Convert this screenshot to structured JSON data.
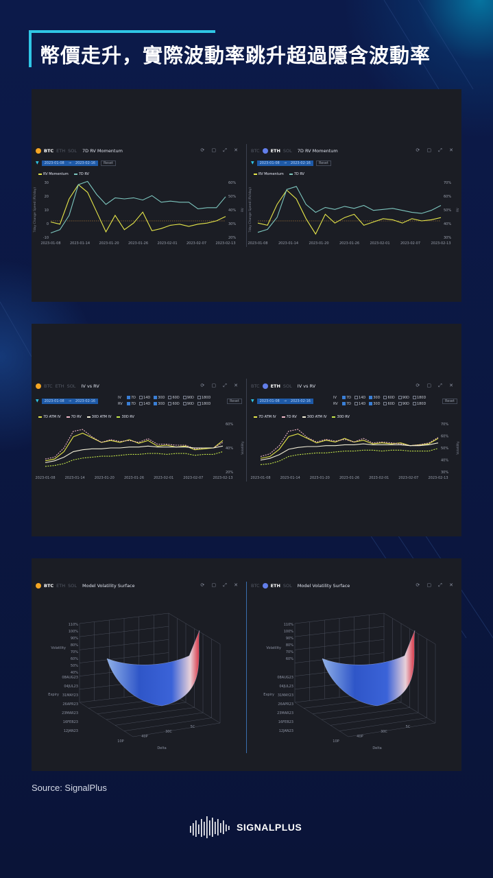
{
  "page_title": "幣價走升，實際波動率跳升超過隱含波動率",
  "source": "Source: SignalPlus",
  "logo_text": "SIGNALPLUS",
  "colors": {
    "background": "#0b1640",
    "accent": "#2fc6e6",
    "panel": "#1b1d24",
    "yellow": "#e8e84a",
    "teal": "#7ec8c0",
    "pink": "#f2b8c8",
    "btc": "#f5a623",
    "eth": "#627eea"
  },
  "tabs": {
    "btc": "BTC",
    "eth": "ETH",
    "sol": "SOL"
  },
  "reset_label": "Reset",
  "date_range": {
    "start": "2023-01-08",
    "end": "2023-02-16"
  },
  "x_ticks": [
    "2023-01-08",
    "2023-01-14",
    "2023-01-20",
    "2023-01-26",
    "2023-02-01",
    "2023-02-07",
    "2023-02-13"
  ],
  "iv_filters": {
    "iv_label": "IV",
    "rv_label": "RV",
    "tenors": [
      "7D",
      "14D",
      "30D",
      "60D",
      "90D",
      "180D"
    ],
    "iv_checked": [
      true,
      false,
      true,
      false,
      false,
      false
    ],
    "rv_checked": [
      true,
      false,
      true,
      false,
      false,
      false
    ]
  },
  "chart_data": [
    {
      "id": "btc-rv-momentum",
      "type": "line",
      "coin": "BTC",
      "title": "7D RV Momentum",
      "x": [
        "2023-01-08",
        "2023-01-10",
        "2023-01-12",
        "2023-01-14",
        "2023-01-16",
        "2023-01-18",
        "2023-01-20",
        "2023-01-22",
        "2023-01-24",
        "2023-01-26",
        "2023-01-28",
        "2023-01-30",
        "2023-02-01",
        "2023-02-03",
        "2023-02-05",
        "2023-02-07",
        "2023-02-09",
        "2023-02-11",
        "2023-02-13",
        "2023-02-16"
      ],
      "ylabel_left": "7day Change Speed (RV/day)",
      "ylabel_right": "RV",
      "yticks_left": [
        "30",
        "20",
        "10",
        "0",
        "-10"
      ],
      "yticks_right": [
        "60%",
        "50%",
        "40%",
        "30%",
        "20%"
      ],
      "ylim_left": [
        -15,
        35
      ],
      "ylim_right": [
        15,
        65
      ],
      "series": [
        {
          "name": "RV Momentum",
          "color": "#e8e84a",
          "axis": "left",
          "values": [
            -1,
            -3,
            20,
            33,
            26,
            8,
            -10,
            5,
            -8,
            -2,
            8,
            -9,
            -7,
            -4,
            -3,
            -5,
            -3,
            -2,
            0,
            4
          ]
        },
        {
          "name": "7D RV",
          "color": "#7ec8c0",
          "axis": "right",
          "values": [
            19,
            22,
            35,
            63,
            66,
            54,
            45,
            51,
            50,
            51,
            49,
            53,
            47,
            48,
            47,
            47,
            41,
            42,
            42,
            52
          ]
        }
      ]
    },
    {
      "id": "eth-rv-momentum",
      "type": "line",
      "coin": "ETH",
      "title": "7D RV Momentum",
      "x": [
        "2023-01-08",
        "2023-01-10",
        "2023-01-12",
        "2023-01-14",
        "2023-01-16",
        "2023-01-18",
        "2023-01-20",
        "2023-01-22",
        "2023-01-24",
        "2023-01-26",
        "2023-01-28",
        "2023-01-30",
        "2023-02-01",
        "2023-02-03",
        "2023-02-05",
        "2023-02-07",
        "2023-02-09",
        "2023-02-11",
        "2023-02-13",
        "2023-02-16"
      ],
      "ylabel_left": "7day Change Speed (RV/day)",
      "ylabel_right": "RV",
      "yticks_right": [
        "70%",
        "60%",
        "50%",
        "40%",
        "30%"
      ],
      "ylim_left": [
        -15,
        35
      ],
      "ylim_right": [
        25,
        80
      ],
      "series": [
        {
          "name": "RV Momentum",
          "color": "#e8e84a",
          "axis": "left",
          "values": [
            -2,
            -4,
            15,
            28,
            20,
            2,
            -12,
            6,
            -2,
            3,
            6,
            -4,
            -1,
            2,
            1,
            -2,
            2,
            0,
            1,
            3
          ]
        },
        {
          "name": "7D RV",
          "color": "#7ec8c0",
          "axis": "right",
          "values": [
            30,
            33,
            45,
            73,
            76,
            58,
            50,
            55,
            53,
            56,
            54,
            57,
            52,
            53,
            54,
            52,
            50,
            49,
            52,
            57
          ]
        }
      ]
    },
    {
      "id": "btc-iv-vs-rv",
      "type": "line",
      "coin": "BTC",
      "title": "IV vs RV",
      "x": [
        "2023-01-08",
        "2023-01-10",
        "2023-01-12",
        "2023-01-14",
        "2023-01-16",
        "2023-01-18",
        "2023-01-20",
        "2023-01-22",
        "2023-01-24",
        "2023-01-26",
        "2023-01-28",
        "2023-01-30",
        "2023-02-01",
        "2023-02-03",
        "2023-02-05",
        "2023-02-07",
        "2023-02-09",
        "2023-02-11",
        "2023-02-13",
        "2023-02-16"
      ],
      "ylabel_right": "Volatility",
      "yticks_right": [
        "60%",
        "40%",
        "20%"
      ],
      "ylim_right": [
        18,
        70
      ],
      "series": [
        {
          "name": "7D ATM IV",
          "color": "#e8e84a",
          "values": [
            30,
            32,
            40,
            56,
            60,
            55,
            50,
            52,
            50,
            53,
            49,
            52,
            46,
            47,
            45,
            46,
            42,
            43,
            44,
            52
          ]
        },
        {
          "name": "7D RV",
          "color": "#f2b8c8",
          "values": [
            32,
            34,
            44,
            62,
            64,
            56,
            50,
            53,
            51,
            52,
            50,
            54,
            48,
            48,
            47,
            47,
            43,
            44,
            44,
            50
          ]
        },
        {
          "name": "30D ATM IV",
          "color": "#f4f0d8",
          "values": [
            28,
            30,
            34,
            40,
            42,
            43,
            43,
            44,
            44,
            45,
            45,
            46,
            45,
            45,
            45,
            45,
            44,
            44,
            44,
            46
          ]
        },
        {
          "name": "30D RV",
          "color": "#c8ea4a",
          "values": [
            24,
            25,
            27,
            31,
            33,
            34,
            35,
            35,
            36,
            37,
            37,
            38,
            38,
            37,
            38,
            38,
            36,
            37,
            37,
            40
          ]
        }
      ]
    },
    {
      "id": "eth-iv-vs-rv",
      "type": "line",
      "coin": "ETH",
      "title": "IV vs RV",
      "x": [
        "2023-01-08",
        "2023-01-10",
        "2023-01-12",
        "2023-01-14",
        "2023-01-16",
        "2023-01-18",
        "2023-01-20",
        "2023-01-22",
        "2023-01-24",
        "2023-01-26",
        "2023-01-28",
        "2023-01-30",
        "2023-02-01",
        "2023-02-03",
        "2023-02-05",
        "2023-02-07",
        "2023-02-09",
        "2023-02-11",
        "2023-02-13",
        "2023-02-16"
      ],
      "ylabel_right": "Volatility",
      "yticks_right": [
        "70%",
        "60%",
        "50%",
        "40%",
        "30%"
      ],
      "ylim_right": [
        25,
        78
      ],
      "series": [
        {
          "name": "7D ATM IV",
          "color": "#e8e84a",
          "values": [
            40,
            42,
            50,
            64,
            67,
            62,
            57,
            60,
            58,
            62,
            58,
            60,
            56,
            57,
            56,
            57,
            54,
            55,
            56,
            62
          ]
        },
        {
          "name": "7D RV",
          "color": "#f2b8c8",
          "values": [
            42,
            45,
            54,
            70,
            72,
            63,
            58,
            61,
            59,
            61,
            58,
            62,
            57,
            58,
            57,
            56,
            54,
            55,
            57,
            63
          ]
        },
        {
          "name": "30D ATM IV",
          "color": "#f4f0d8",
          "values": [
            38,
            40,
            44,
            50,
            52,
            53,
            53,
            54,
            54,
            55,
            55,
            56,
            55,
            55,
            55,
            55,
            54,
            54,
            55,
            57
          ]
        },
        {
          "name": "30D RV",
          "color": "#c8ea4a",
          "values": [
            33,
            34,
            37,
            42,
            44,
            45,
            46,
            46,
            47,
            48,
            48,
            49,
            49,
            48,
            49,
            49,
            48,
            48,
            48,
            51
          ]
        }
      ]
    },
    {
      "id": "btc-vol-surface",
      "type": "surface",
      "coin": "BTC",
      "title": "Model Volatility Surface",
      "z_label": "Volatility",
      "z_ticks": [
        "110%",
        "100%",
        "90%",
        "80%",
        "70%",
        "60%",
        "50%",
        "40%"
      ],
      "y_label": "Expiry",
      "y_ticks": [
        "08AUG23",
        "04JUL23",
        "31MAY23",
        "26APR23",
        "23MAR23",
        "16FEB23",
        "12JAN23"
      ],
      "x_label": "Delta",
      "x_ticks": [
        "10P",
        "40P",
        "30C",
        "5C"
      ]
    },
    {
      "id": "eth-vol-surface",
      "type": "surface",
      "coin": "ETH",
      "title": "Model Volatility Surface",
      "z_label": "Volatility",
      "z_ticks": [
        "110%",
        "100%",
        "90%",
        "80%",
        "70%",
        "60%"
      ],
      "y_label": "Expiry",
      "y_ticks": [
        "08AUG23",
        "04JUL23",
        "31MAY23",
        "26APR23",
        "23MAR23",
        "16FEB23",
        "12JAN23"
      ],
      "x_label": "Delta",
      "x_ticks": [
        "10P",
        "40P",
        "30C",
        "5C"
      ]
    }
  ]
}
